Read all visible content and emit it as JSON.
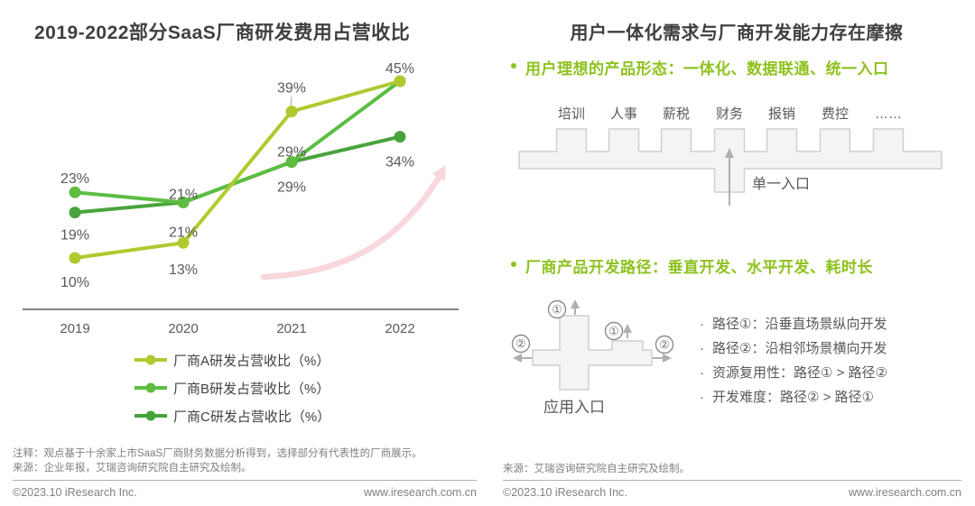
{
  "left_panel": {
    "title": "2019-2022部分SaaS厂商研发费用占营收比",
    "note_line1": "注释：观点基于十余家上市SaaS厂商财务数据分析得到，选择部分有代表性的厂商展示。",
    "note_line2": "来源：企业年报，艾瑞咨询研究院自主研究及绘制。"
  },
  "chart_data": {
    "type": "line",
    "title": "2019-2022部分SaaS厂商研发费用占营收比",
    "categories": [
      "2019",
      "2020",
      "2021",
      "2022"
    ],
    "unit": "%",
    "ylim": [
      0,
      50
    ],
    "gridlines": false,
    "legend_position": "bottom",
    "annotation": "pink upward trend arrow at bottom right",
    "series": [
      {
        "name": "厂商A研发占营收比（%）",
        "color": "#aeca30",
        "values": [
          10,
          13,
          39,
          45
        ],
        "labels": [
          "10%",
          "13%",
          "39%",
          "45%"
        ],
        "label_dy": [
          32,
          35,
          -21,
          -9
        ]
      },
      {
        "name": "厂商B研发占营收比（%）",
        "color": "#5cbd42",
        "values": [
          23,
          21,
          29,
          45
        ],
        "labels": [
          "23%",
          "21%",
          "29%",
          ""
        ],
        "label_dy": [
          -10,
          -4,
          -6,
          0
        ]
      },
      {
        "name": "厂商C研发占营收比（%）",
        "color": "#47a43c",
        "values": [
          19,
          21,
          29,
          34
        ],
        "labels": [
          "19%",
          "21%",
          "29%",
          "34%"
        ],
        "label_dy": [
          30,
          38,
          33,
          33
        ]
      }
    ]
  },
  "right_panel": {
    "title": "用户一体化需求与厂商开发能力存在摩擦",
    "bullet1": "用户理想的产品形态：一体化、数据联通、统一入口",
    "bullet2": "厂商产品开发路径：垂直开发、水平开发、耗时长",
    "modules": [
      "培训",
      "人事",
      "薪税",
      "财务",
      "报销",
      "费控",
      "……"
    ],
    "single_entry_label": "单一入口",
    "app_entry_label": "应用入口",
    "circle_labels": {
      "path1": "①",
      "path2": "②"
    },
    "path_notes": [
      "路径①：沿垂直场景纵向开发",
      "路径②：沿相邻场景横向开发",
      "资源复用性：路径① > 路径②",
      "开发难度：路径② > 路径①"
    ],
    "path_note_marker": "·",
    "source": "来源：艾瑞咨询研究院自主研究及绘制。"
  },
  "footer_left": {
    "copyright": "©2023.10 iResearch Inc.",
    "site": "www.iresearch.com.cn"
  },
  "footer_right": {
    "copyright": "©2023.10 iResearch Inc.",
    "site": "www.iresearch.com.cn"
  },
  "colors": {
    "series_a": "#aeca30",
    "series_b": "#5cbd42",
    "series_c": "#47a43c",
    "accent_green": "#8ec21f",
    "pink_arrow": "#f8d7dd",
    "title_gray": "#3f3f3f",
    "label_gray": "#595959",
    "note_gray": "#7f7f7f",
    "shape_fill": "#f4f4f4",
    "shape_stroke": "#cfcfcf",
    "arrow_gray": "#b0b0b0"
  }
}
